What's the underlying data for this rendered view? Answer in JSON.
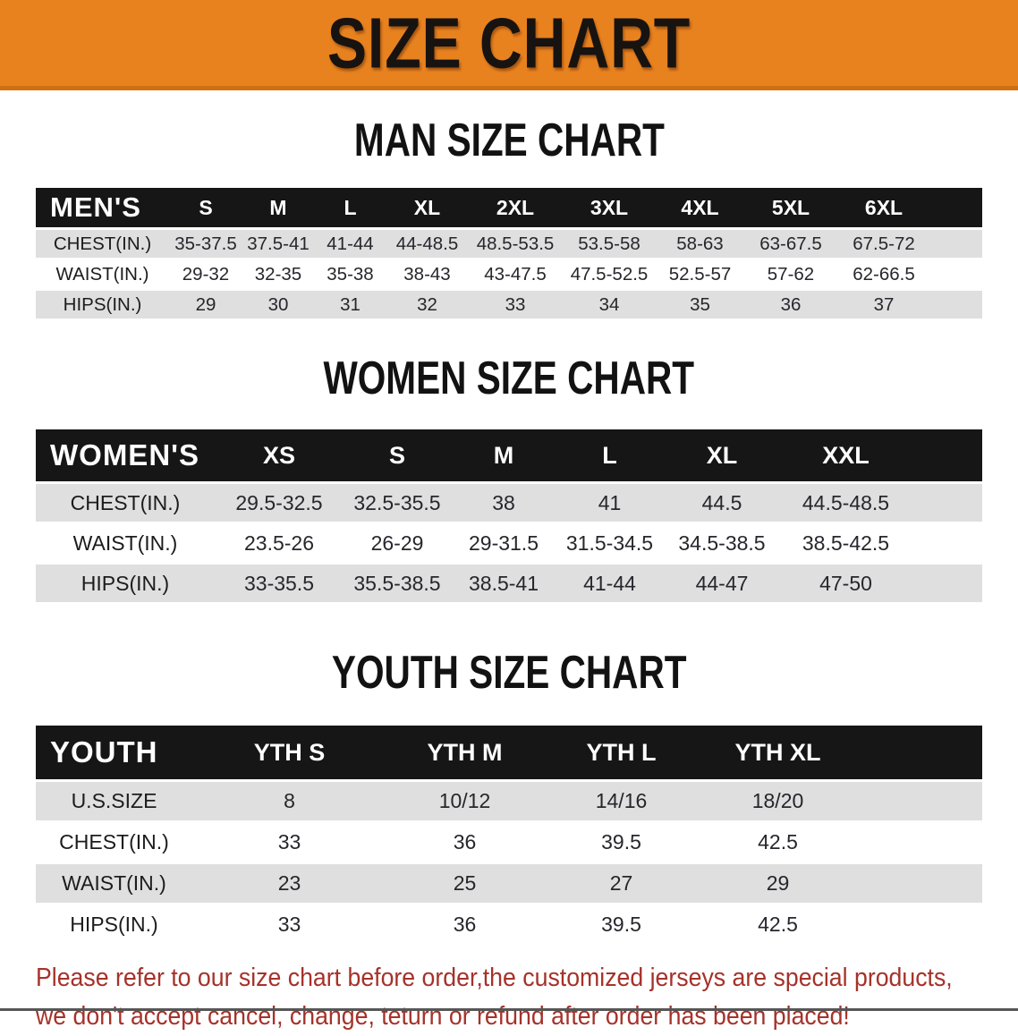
{
  "banner": {
    "title": "SIZE CHART"
  },
  "colors": {
    "banner_bg": "#e8821f",
    "banner_border": "#cf6f12",
    "table_header_bar": "#161616",
    "row_shade": "#dfdfdf",
    "footer_text": "#a5322a"
  },
  "sections": [
    {
      "heading": "MAN SIZE CHART",
      "table": {
        "header_label": "MEN'S",
        "columns": [
          "S",
          "M",
          "L",
          "XL",
          "2XL",
          "3XL",
          "4XL",
          "5XL",
          "6XL"
        ],
        "rows": [
          {
            "label": "CHEST(IN.)",
            "values": [
              "35-37.5",
              "37.5-41",
              "41-44",
              "44-48.5",
              "48.5-53.5",
              "53.5-58",
              "58-63",
              "63-67.5",
              "67.5-72"
            ]
          },
          {
            "label": "WAIST(IN.)",
            "values": [
              "29-32",
              "32-35",
              "35-38",
              "38-43",
              "43-47.5",
              "47.5-52.5",
              "52.5-57",
              "57-62",
              "62-66.5"
            ]
          },
          {
            "label": "HIPS(IN.)",
            "values": [
              "29",
              "30",
              "31",
              "32",
              "33",
              "34",
              "35",
              "36",
              "37"
            ]
          }
        ]
      }
    },
    {
      "heading": "WOMEN SIZE CHART",
      "table": {
        "header_label": "WOMEN'S",
        "columns": [
          "XS",
          "S",
          "M",
          "L",
          "XL",
          "XXL"
        ],
        "rows": [
          {
            "label": "CHEST(IN.)",
            "values": [
              "29.5-32.5",
              "32.5-35.5",
              "38",
              "41",
              "44.5",
              "44.5-48.5"
            ]
          },
          {
            "label": "WAIST(IN.)",
            "values": [
              "23.5-26",
              "26-29",
              "29-31.5",
              "31.5-34.5",
              "34.5-38.5",
              "38.5-42.5"
            ]
          },
          {
            "label": "HIPS(IN.)",
            "values": [
              "33-35.5",
              "35.5-38.5",
              "38.5-41",
              "41-44",
              "44-47",
              "47-50"
            ]
          }
        ]
      }
    },
    {
      "heading": "YOUTH SIZE CHART",
      "table": {
        "header_label": "YOUTH",
        "columns": [
          "YTH S",
          "YTH M",
          "YTH L",
          "YTH XL"
        ],
        "rows": [
          {
            "label": "U.S.SIZE",
            "values": [
              "8",
              "10/12",
              "14/16",
              "18/20"
            ]
          },
          {
            "label": "CHEST(IN.)",
            "values": [
              "33",
              "36",
              "39.5",
              "42.5"
            ]
          },
          {
            "label": "WAIST(IN.)",
            "values": [
              "23",
              "25",
              "27",
              "29"
            ]
          },
          {
            "label": "HIPS(IN.)",
            "values": [
              "33",
              "36",
              "39.5",
              "42.5"
            ]
          }
        ]
      }
    }
  ],
  "footer": {
    "line1": "Please refer to our size chart before order,the customized jerseys are special products,",
    "line2": "we don't accept cancel, change, teturn or refund after order has been placed!"
  }
}
